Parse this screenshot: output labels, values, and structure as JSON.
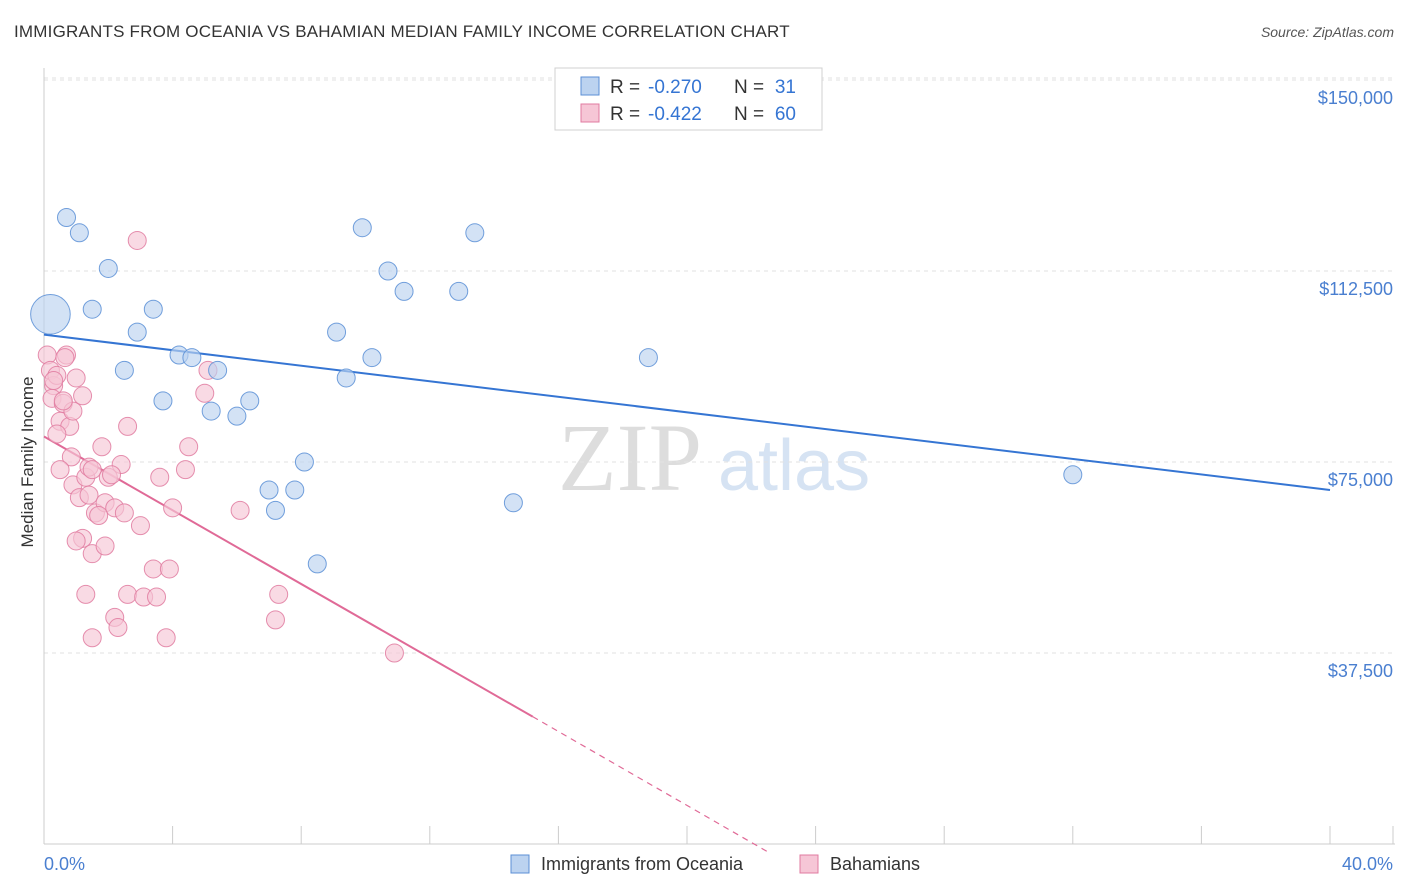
{
  "header": {
    "title": "IMMIGRANTS FROM OCEANIA VS BAHAMIAN MEDIAN FAMILY INCOME CORRELATION CHART",
    "source": "Source: ZipAtlas.com"
  },
  "watermark": {
    "zip": "ZIP",
    "atlas": "atlas"
  },
  "colors": {
    "blue": "#5b8fd6",
    "blue_fill": "#bcd3f0",
    "blue_line": "#3575d3",
    "pink": "#e07ba0",
    "pink_fill": "#f6c6d6",
    "pink_line": "#e06a97",
    "axis_text": "#4a7fd0"
  },
  "legend_top": {
    "rows": [
      {
        "r_label": "R = ",
        "r_value": "-0.270",
        "n_label": "N = ",
        "n_value": "31"
      },
      {
        "r_label": "R = ",
        "r_value": "-0.422",
        "n_label": "N = ",
        "n_value": "60"
      }
    ]
  },
  "legend_bottom": {
    "items": [
      "Immigrants from Oceania",
      "Bahamians"
    ]
  },
  "chart_data": {
    "type": "scatter",
    "title": "IMMIGRANTS FROM OCEANIA VS BAHAMIAN MEDIAN FAMILY INCOME CORRELATION CHART",
    "xlabel": "",
    "ylabel": "Median Family Income",
    "xlim": [
      0,
      40
    ],
    "ylim": [
      0,
      155000
    ],
    "x_tick_labels": [
      "0.0%",
      "40.0%"
    ],
    "y_ticks": [
      37500,
      75000,
      112500,
      150000
    ],
    "y_tick_labels": [
      "$37,500",
      "$75,000",
      "$112,500",
      "$150,000"
    ],
    "grid": true,
    "legend_position": "top-center",
    "series": [
      {
        "name": "Immigrants from Oceania",
        "R": -0.27,
        "N": 31,
        "trend": {
          "x": [
            0,
            40
          ],
          "y": [
            100000,
            69500
          ]
        },
        "points": [
          {
            "x": 0.2,
            "y": 104000,
            "s": 2.2
          },
          {
            "x": 0.7,
            "y": 123000
          },
          {
            "x": 1.1,
            "y": 120000
          },
          {
            "x": 2.0,
            "y": 113000
          },
          {
            "x": 1.5,
            "y": 105000
          },
          {
            "x": 3.4,
            "y": 105000
          },
          {
            "x": 2.9,
            "y": 100500
          },
          {
            "x": 2.5,
            "y": 93000
          },
          {
            "x": 4.2,
            "y": 96000
          },
          {
            "x": 4.6,
            "y": 95500
          },
          {
            "x": 5.4,
            "y": 93000
          },
          {
            "x": 3.7,
            "y": 87000
          },
          {
            "x": 5.2,
            "y": 85000
          },
          {
            "x": 6.4,
            "y": 87000
          },
          {
            "x": 6.0,
            "y": 84000
          },
          {
            "x": 9.9,
            "y": 121000
          },
          {
            "x": 13.4,
            "y": 120000
          },
          {
            "x": 10.7,
            "y": 112500
          },
          {
            "x": 11.2,
            "y": 108500
          },
          {
            "x": 12.9,
            "y": 108500
          },
          {
            "x": 9.1,
            "y": 100500
          },
          {
            "x": 10.2,
            "y": 95500
          },
          {
            "x": 9.4,
            "y": 91500
          },
          {
            "x": 18.8,
            "y": 95500
          },
          {
            "x": 8.1,
            "y": 75000
          },
          {
            "x": 7.0,
            "y": 69500
          },
          {
            "x": 7.8,
            "y": 69500
          },
          {
            "x": 7.2,
            "y": 65500
          },
          {
            "x": 14.6,
            "y": 67000
          },
          {
            "x": 8.5,
            "y": 55000
          },
          {
            "x": 32.0,
            "y": 72500
          }
        ]
      },
      {
        "name": "Bahamians",
        "R": -0.422,
        "N": 60,
        "trend": {
          "x": [
            0,
            15.2
          ],
          "y": [
            80000,
            25000
          ]
        },
        "trend_dashed": {
          "x": [
            15.2,
            22.5
          ],
          "y": [
            25000,
            -1500
          ]
        },
        "points": [
          {
            "x": 0.1,
            "y": 96000
          },
          {
            "x": 0.2,
            "y": 93000
          },
          {
            "x": 0.3,
            "y": 90000
          },
          {
            "x": 0.25,
            "y": 87500
          },
          {
            "x": 0.4,
            "y": 92000
          },
          {
            "x": 0.6,
            "y": 86500
          },
          {
            "x": 0.5,
            "y": 83000
          },
          {
            "x": 0.8,
            "y": 82000
          },
          {
            "x": 0.7,
            "y": 96000
          },
          {
            "x": 0.65,
            "y": 95500
          },
          {
            "x": 0.9,
            "y": 85000
          },
          {
            "x": 1.0,
            "y": 91500
          },
          {
            "x": 1.2,
            "y": 88000
          },
          {
            "x": 0.85,
            "y": 76000
          },
          {
            "x": 0.5,
            "y": 73500
          },
          {
            "x": 0.9,
            "y": 70500
          },
          {
            "x": 1.1,
            "y": 68000
          },
          {
            "x": 1.3,
            "y": 72000
          },
          {
            "x": 1.4,
            "y": 74000
          },
          {
            "x": 1.5,
            "y": 73500
          },
          {
            "x": 1.4,
            "y": 68500
          },
          {
            "x": 1.6,
            "y": 65000
          },
          {
            "x": 1.8,
            "y": 78000
          },
          {
            "x": 1.9,
            "y": 67000
          },
          {
            "x": 2.0,
            "y": 72000
          },
          {
            "x": 2.2,
            "y": 66000
          },
          {
            "x": 2.4,
            "y": 74500
          },
          {
            "x": 2.6,
            "y": 82000
          },
          {
            "x": 2.5,
            "y": 65000
          },
          {
            "x": 3.0,
            "y": 62500
          },
          {
            "x": 1.2,
            "y": 60000
          },
          {
            "x": 1.0,
            "y": 59500
          },
          {
            "x": 1.5,
            "y": 57000
          },
          {
            "x": 1.9,
            "y": 58500
          },
          {
            "x": 2.9,
            "y": 118500
          },
          {
            "x": 3.6,
            "y": 72000
          },
          {
            "x": 4.4,
            "y": 73500
          },
          {
            "x": 4.5,
            "y": 78000
          },
          {
            "x": 4.0,
            "y": 66000
          },
          {
            "x": 5.1,
            "y": 93000
          },
          {
            "x": 5.0,
            "y": 88500
          },
          {
            "x": 3.4,
            "y": 54000
          },
          {
            "x": 3.9,
            "y": 54000
          },
          {
            "x": 2.6,
            "y": 49000
          },
          {
            "x": 3.1,
            "y": 48500
          },
          {
            "x": 3.5,
            "y": 48500
          },
          {
            "x": 1.3,
            "y": 49000
          },
          {
            "x": 2.2,
            "y": 44500
          },
          {
            "x": 2.3,
            "y": 42500
          },
          {
            "x": 1.5,
            "y": 40500
          },
          {
            "x": 3.8,
            "y": 40500
          },
          {
            "x": 6.1,
            "y": 65500
          },
          {
            "x": 7.3,
            "y": 49000
          },
          {
            "x": 7.2,
            "y": 44000
          },
          {
            "x": 10.9,
            "y": 37500
          },
          {
            "x": 0.3,
            "y": 91000
          },
          {
            "x": 0.6,
            "y": 87000
          },
          {
            "x": 1.7,
            "y": 64500
          },
          {
            "x": 2.1,
            "y": 72500
          },
          {
            "x": 0.4,
            "y": 80500
          }
        ]
      }
    ]
  }
}
